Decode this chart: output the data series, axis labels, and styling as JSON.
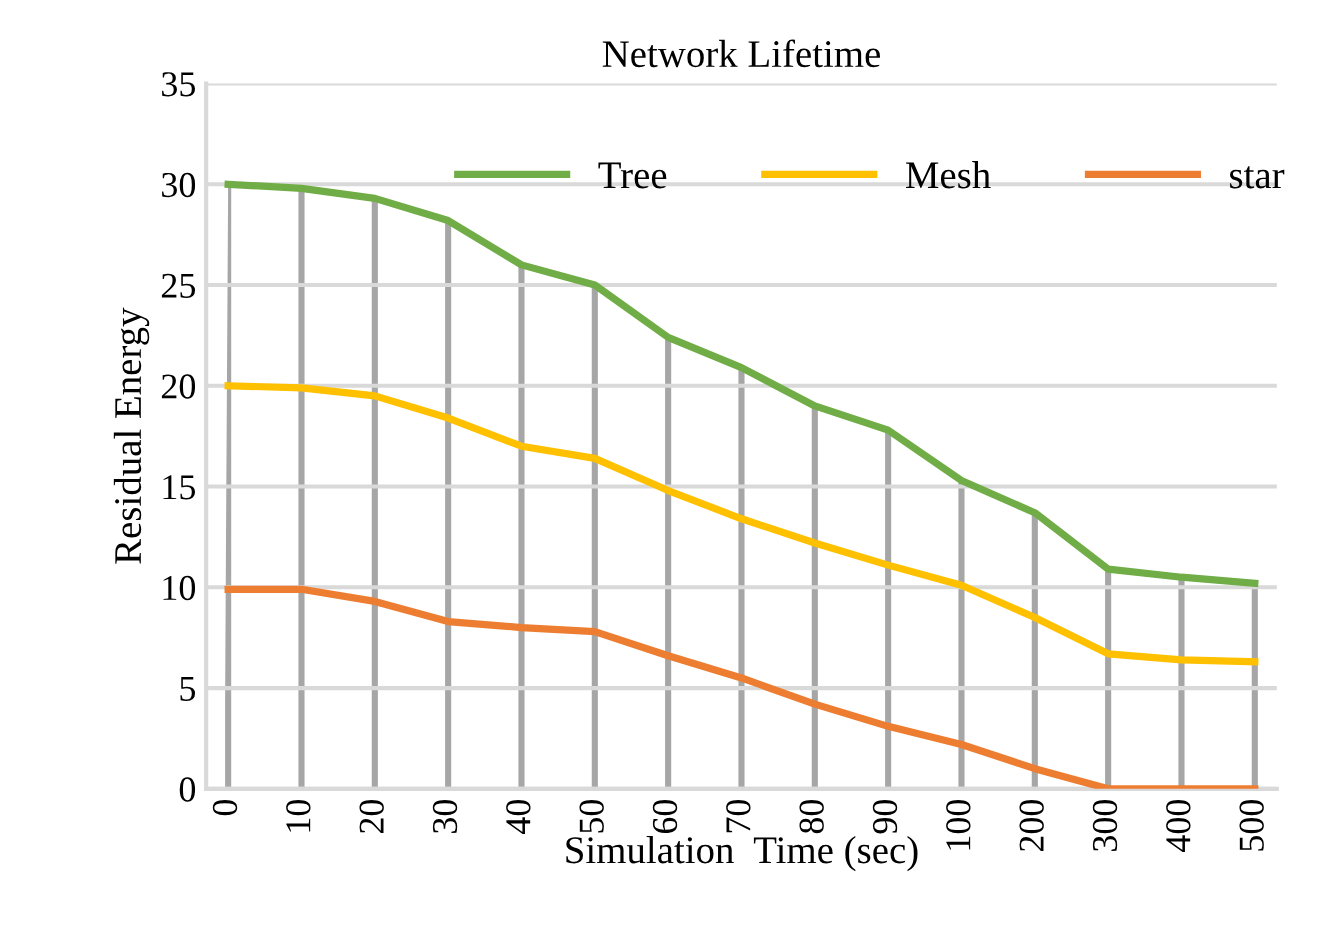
{
  "chart_data": {
    "type": "line",
    "title": "Network Lifetime",
    "xlabel": "Simulation  Time (sec)",
    "ylabel": "Residual Energy",
    "categories": [
      "0",
      "10",
      "20",
      "30",
      "40",
      "50",
      "60",
      "70",
      "80",
      "90",
      "100",
      "200",
      "300",
      "400",
      "500"
    ],
    "series": [
      {
        "name": "Tree",
        "color": "#70ad47",
        "values": [
          30,
          29.8,
          29.3,
          28.2,
          26,
          25,
          22.4,
          20.9,
          19,
          17.8,
          15.3,
          13.7,
          10.9,
          10.5,
          10.2
        ]
      },
      {
        "name": "Mesh",
        "color": "#ffc000",
        "values": [
          20,
          19.9,
          19.5,
          18.4,
          17,
          16.4,
          14.8,
          13.4,
          12.2,
          11.1,
          10.1,
          8.5,
          6.7,
          6.4,
          6.3
        ]
      },
      {
        "name": "star",
        "color": "#ed7d31",
        "values": [
          9.9,
          9.9,
          9.3,
          8.3,
          8,
          7.8,
          6.6,
          5.5,
          4.2,
          3.1,
          2.2,
          1.0,
          0,
          0,
          0
        ]
      }
    ],
    "ylim": [
      0,
      35
    ],
    "yticks": [
      0,
      5,
      10,
      15,
      20,
      25,
      30,
      35
    ],
    "grid": true,
    "legend": "top right",
    "marker": "none",
    "line_style": "solid"
  }
}
